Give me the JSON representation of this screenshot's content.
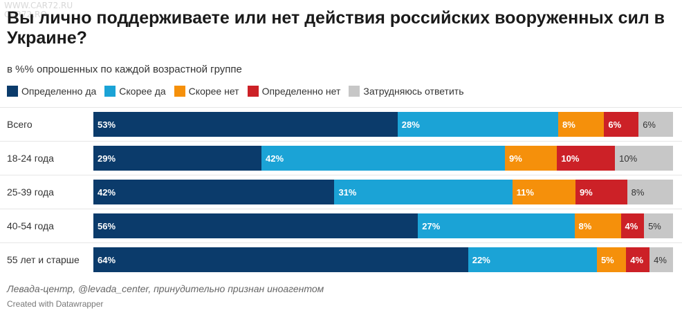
{
  "watermark": [
    "WWW.CAR72.RU",
    "CAR72.RO"
  ],
  "chart_data": {
    "type": "bar",
    "orientation": "horizontal-stacked-100",
    "title": "Вы лично поддерживаете или нет действия российских вооруженных сил в Украине?",
    "subtitle": "в %% опрошенных по каждой возрастной группе",
    "legend_position": "top-left",
    "categories": [
      "Всего",
      "18-24 года",
      "25-39 года",
      "40-54 года",
      "55 лет и старше"
    ],
    "series": [
      {
        "name": "Определенно да",
        "color": "#0b3b6b",
        "values": [
          53,
          29,
          42,
          56,
          64
        ]
      },
      {
        "name": "Скорее да",
        "color": "#1ba3d6",
        "values": [
          28,
          42,
          31,
          27,
          22
        ]
      },
      {
        "name": "Скорее нет",
        "color": "#f5900b",
        "values": [
          8,
          9,
          11,
          8,
          5
        ]
      },
      {
        "name": "Определенно нет",
        "color": "#cc2127",
        "values": [
          6,
          10,
          9,
          4,
          4
        ]
      },
      {
        "name": "Затрудняюсь ответить",
        "color": "#c7c7c7",
        "values": [
          6,
          10,
          8,
          5,
          4
        ]
      }
    ],
    "value_suffix": "%"
  },
  "source": "Левада-центр, @levada_center, принудительно признан иноагентом",
  "credit": "Created with Datawrapper"
}
